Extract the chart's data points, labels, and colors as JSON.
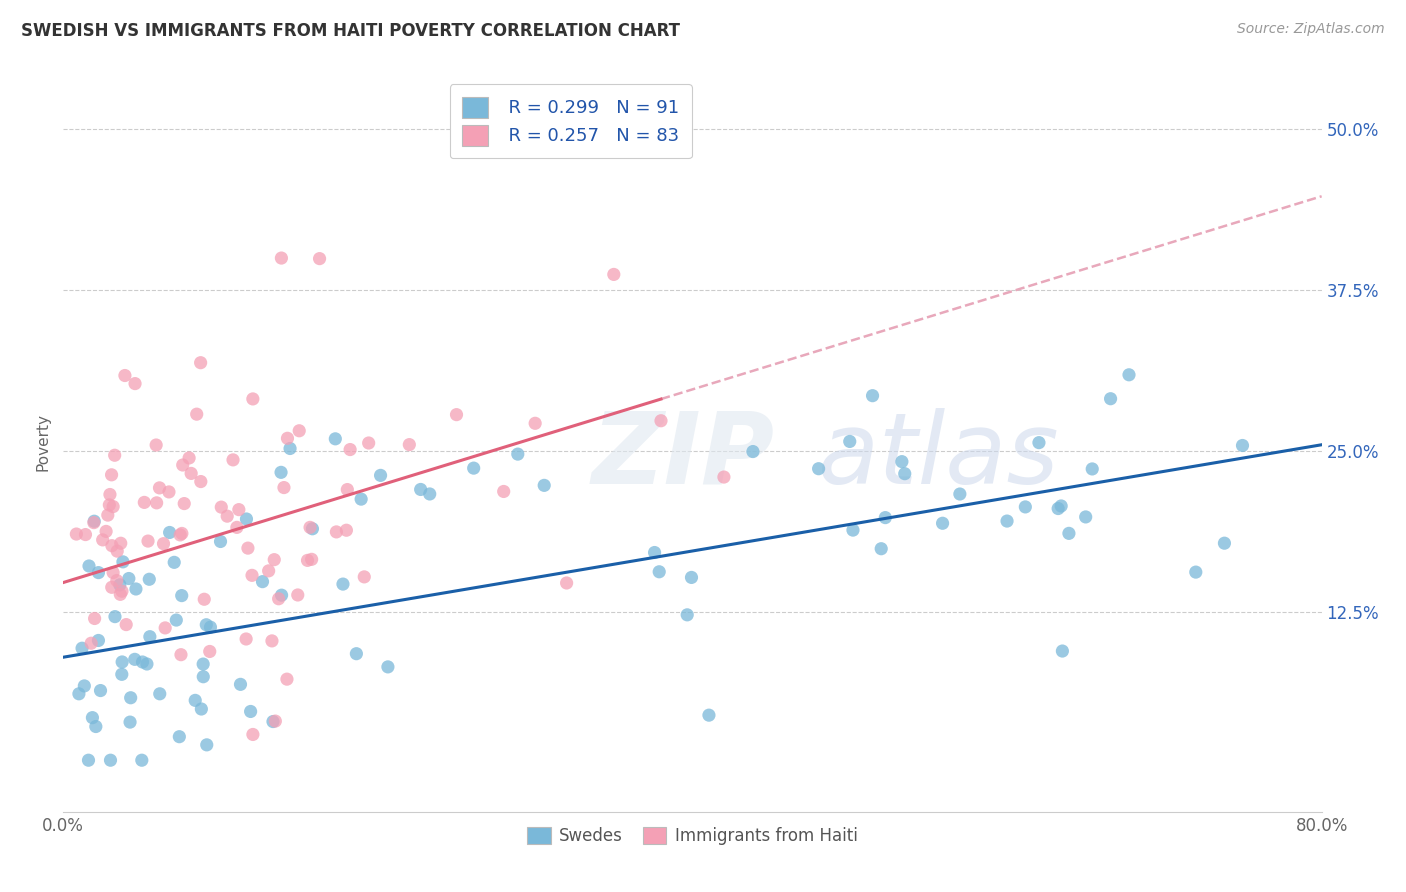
{
  "title": "SWEDISH VS IMMIGRANTS FROM HAITI POVERTY CORRELATION CHART",
  "source": "Source: ZipAtlas.com",
  "ylabel": "Poverty",
  "ytick_labels": [
    "12.5%",
    "25.0%",
    "37.5%",
    "50.0%"
  ],
  "ytick_values": [
    0.125,
    0.25,
    0.375,
    0.5
  ],
  "xlim": [
    0.0,
    0.8
  ],
  "ylim": [
    -0.03,
    0.545
  ],
  "legend_blue_r": "R = 0.299",
  "legend_blue_n": "N = 91",
  "legend_pink_r": "R = 0.257",
  "legend_pink_n": "N = 83",
  "legend_label_blue": "Swedes",
  "legend_label_pink": "Immigrants from Haiti",
  "blue_color": "#7ab8d9",
  "pink_color": "#f4a0b5",
  "blue_line_color": "#1a5fa8",
  "pink_line_color": "#e0607a",
  "pink_dash_color": "#e8a8bb",
  "title_fontsize": 12,
  "source_fontsize": 10,
  "tick_fontsize": 12,
  "ylabel_fontsize": 11,
  "blue_line_intercept": 0.09,
  "blue_line_slope": 0.165,
  "pink_line_intercept": 0.148,
  "pink_line_slope": 0.3,
  "pink_line_solid_end": 0.38,
  "pink_line_dash_end": 0.8
}
